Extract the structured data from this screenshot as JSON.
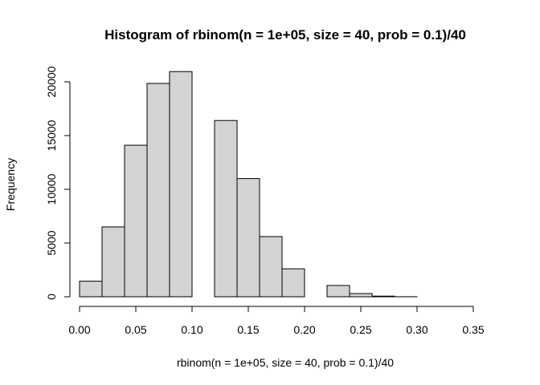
{
  "chart_data": {
    "type": "bar",
    "title": "Histogram of rbinom(n = 1e+05, size = 40, prob = 0.1)/40",
    "xlabel": "rbinom(n = 1e+05, size = 40, prob = 0.1)/40",
    "ylabel": "Frequency",
    "bin_width": 0.02,
    "bins": [
      {
        "x0": 0.0,
        "x1": 0.02,
        "count": 1450
      },
      {
        "x0": 0.02,
        "x1": 0.04,
        "count": 6500
      },
      {
        "x0": 0.04,
        "x1": 0.06,
        "count": 14100
      },
      {
        "x0": 0.06,
        "x1": 0.08,
        "count": 19850
      },
      {
        "x0": 0.08,
        "x1": 0.1,
        "count": 20950
      },
      {
        "x0": 0.1,
        "x1": 0.12,
        "count": 0
      },
      {
        "x0": 0.12,
        "x1": 0.14,
        "count": 16400
      },
      {
        "x0": 0.14,
        "x1": 0.16,
        "count": 11000
      },
      {
        "x0": 0.16,
        "x1": 0.18,
        "count": 5600
      },
      {
        "x0": 0.18,
        "x1": 0.2,
        "count": 2600
      },
      {
        "x0": 0.2,
        "x1": 0.22,
        "count": 0
      },
      {
        "x0": 0.22,
        "x1": 0.24,
        "count": 1050
      },
      {
        "x0": 0.24,
        "x1": 0.26,
        "count": 300
      },
      {
        "x0": 0.26,
        "x1": 0.28,
        "count": 60
      },
      {
        "x0": 0.28,
        "x1": 0.3,
        "count": 5
      },
      {
        "x0": 0.3,
        "x1": 0.32,
        "count": 0
      },
      {
        "x0": 0.32,
        "x1": 0.34,
        "count": 0
      },
      {
        "x0": 0.34,
        "x1": 0.36,
        "count": 0
      }
    ],
    "xlim": [
      0.0,
      0.36
    ],
    "ylim": [
      0,
      21000
    ],
    "x_ticks": [
      "0.00",
      "0.05",
      "0.10",
      "0.15",
      "0.20",
      "0.25",
      "0.30",
      "0.35"
    ],
    "y_ticks": [
      "0",
      "5000",
      "10000",
      "15000",
      "20000"
    ],
    "grid": false,
    "colors": {
      "bar_fill": "#d3d3d3",
      "bar_stroke": "#000000"
    }
  }
}
